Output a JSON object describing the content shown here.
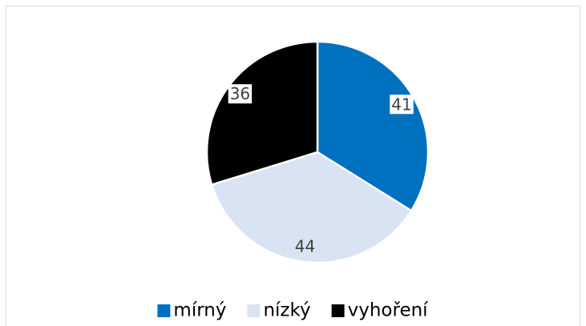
{
  "chart_data": {
    "type": "pie",
    "categories": [
      "mírný",
      "nízký",
      "vyhoření"
    ],
    "values": [
      41,
      44,
      36
    ],
    "colors": [
      "#0070c0",
      "#dae3f3",
      "#000000"
    ],
    "legend": "bottom"
  }
}
